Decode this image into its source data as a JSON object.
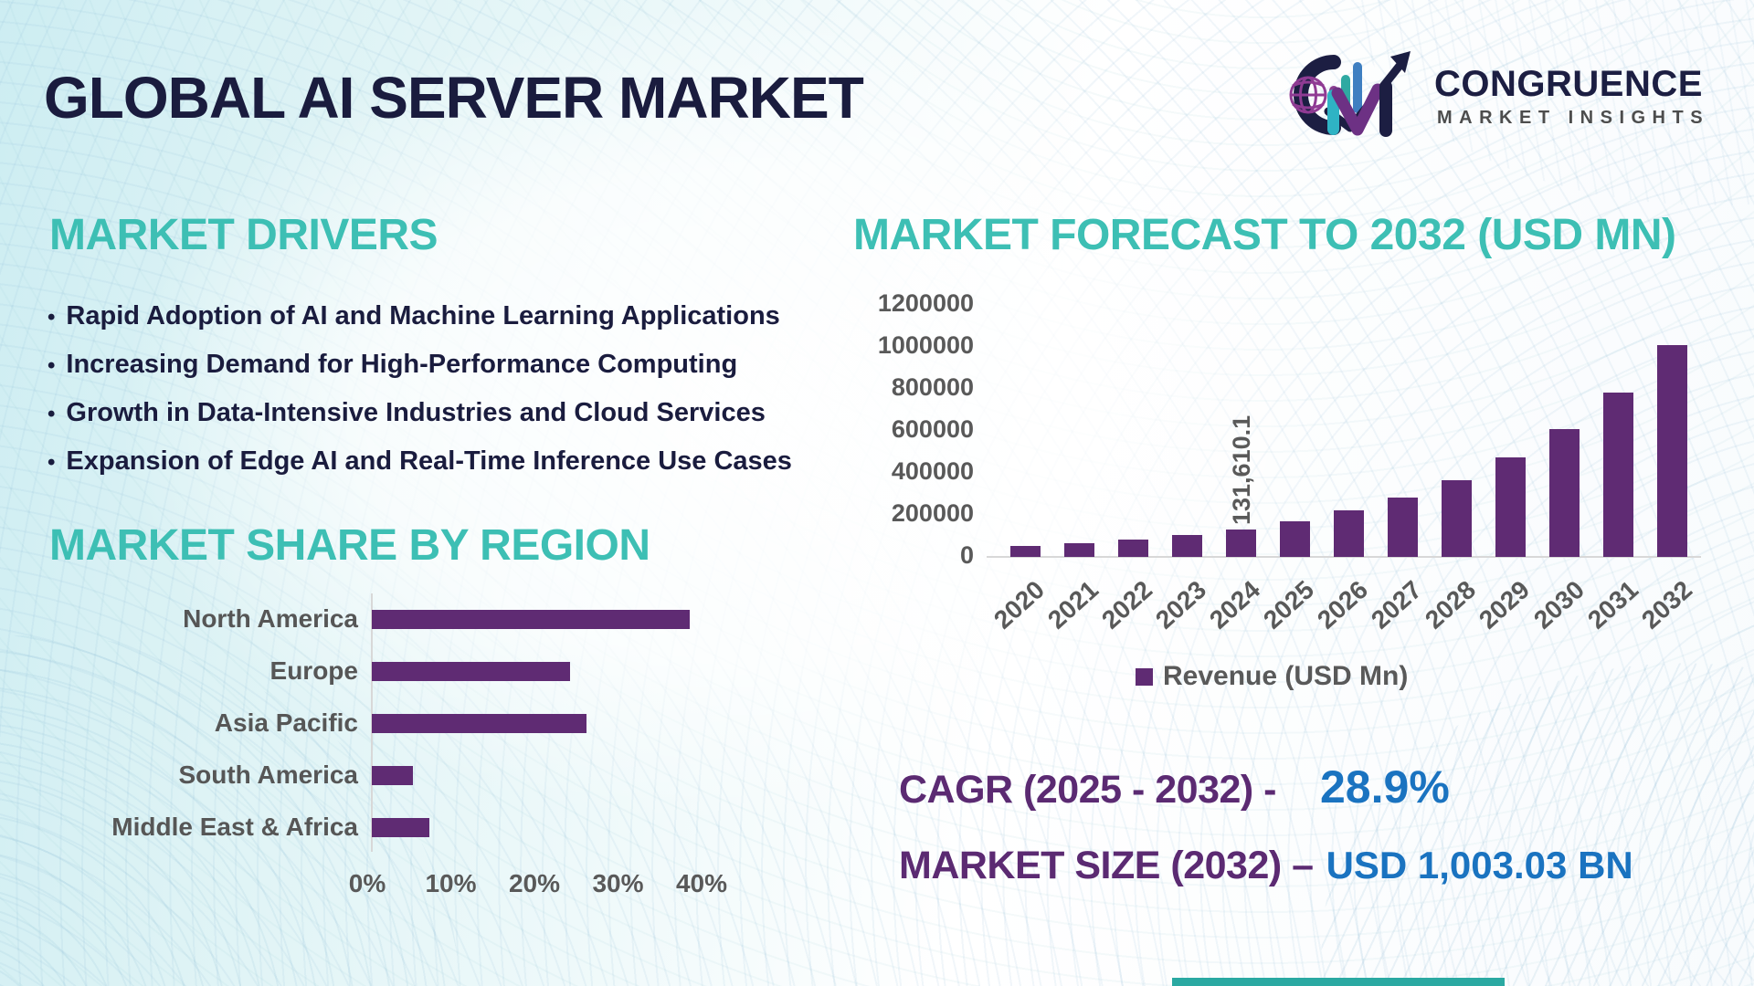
{
  "header": {
    "title": "GLOBAL AI SERVER MARKET",
    "logo": {
      "brand": "CONGRUENCE",
      "tagline": "MARKET INSIGHTS",
      "icon": "cm-monogram-globe-bars-arrow"
    }
  },
  "drivers": {
    "heading": "MARKET DRIVERS",
    "bullet_icon": "•",
    "items": [
      "Rapid Adoption of AI and Machine Learning Applications",
      "Increasing Demand for High-Performance Computing",
      "Growth in Data-Intensive Industries and Cloud Services",
      "Expansion of Edge AI and Real-Time Inference Use Cases"
    ]
  },
  "share_chart": {
    "heading": "MARKET SHARE BY REGION"
  },
  "forecast_chart": {
    "heading": "MARKET FORECAST TO 2032 (USD MN)",
    "legend_label": "Revenue (USD Mn)",
    "data_label_2024": "131,610.1"
  },
  "stats": {
    "cagr_label": "CAGR (2025 - 2032) -",
    "cagr_value": "28.9%",
    "market_size_label": "MARKET SIZE (2032) –",
    "market_size_value": "USD 1,003.03 BN"
  },
  "colors": {
    "accent_teal": "#3dbfb4",
    "bar_purple": "#5f2b73",
    "text_navy": "#1a1c3e",
    "stat_purple": "#5b2a72",
    "stat_blue": "#1a73c0",
    "chart_gray": "#595959",
    "bottom_accent": "#2aa9a2"
  },
  "chart_data": [
    {
      "id": "market-share-by-region",
      "type": "bar",
      "orientation": "horizontal",
      "title": "MARKET SHARE BY REGION",
      "categories": [
        "North America",
        "Europe",
        "Asia Pacific",
        "South America",
        "Middle East & Africa"
      ],
      "values": [
        38.5,
        24,
        26,
        5,
        7
      ],
      "unit": "%",
      "xlim": [
        0,
        40
      ],
      "xticks": [
        "0%",
        "10%",
        "20%",
        "30%",
        "40%"
      ],
      "grid": false,
      "legend": "none",
      "bar_color": "#5f2b73"
    },
    {
      "id": "market-forecast-to-2032",
      "type": "bar",
      "orientation": "vertical",
      "title": "MARKET FORECAST TO 2032 (USD MN)",
      "categories": [
        "2020",
        "2021",
        "2022",
        "2023",
        "2024",
        "2025",
        "2026",
        "2027",
        "2028",
        "2029",
        "2030",
        "2031",
        "2032"
      ],
      "series": [
        {
          "name": "Revenue (USD Mn)",
          "values": [
            51000,
            63000,
            80000,
            102000,
            131610.1,
            169700,
            218700,
            281900,
            363400,
            468400,
            603800,
            778300,
            1003030
          ]
        }
      ],
      "ylim": [
        0,
        1200000
      ],
      "yticks": [
        0,
        200000,
        400000,
        600000,
        800000,
        1000000,
        1200000
      ],
      "data_labels": [
        {
          "category": "2024",
          "label": "131,610.1"
        }
      ],
      "legend_position": "bottom",
      "grid": false,
      "bar_color": "#5f2b73"
    }
  ]
}
